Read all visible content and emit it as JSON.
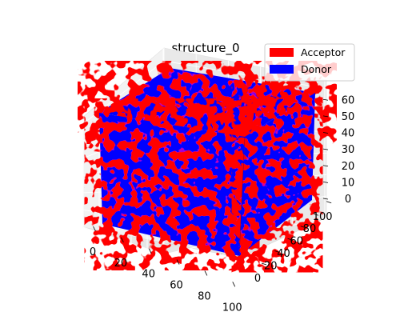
{
  "chart_data": {
    "type": "voxel-3d",
    "title": "structure_0",
    "xlabel": "",
    "ylabel": "",
    "zlabel": "",
    "xlim": [
      0,
      101
    ],
    "ylim": [
      0,
      101
    ],
    "zlim": [
      0,
      64
    ],
    "x_ticks": [
      "0",
      "20",
      "40",
      "60",
      "80",
      "100"
    ],
    "y_ticks": [
      "0",
      "20",
      "40",
      "60",
      "80",
      "100"
    ],
    "z_ticks": [
      "0",
      "10",
      "20",
      "30",
      "40",
      "50",
      "60"
    ],
    "grid": true,
    "legend_position": "upper-right",
    "series": [
      {
        "name": "Acceptor",
        "color": "#ff0000"
      },
      {
        "name": "Donor",
        "color": "#0000ff"
      }
    ]
  }
}
